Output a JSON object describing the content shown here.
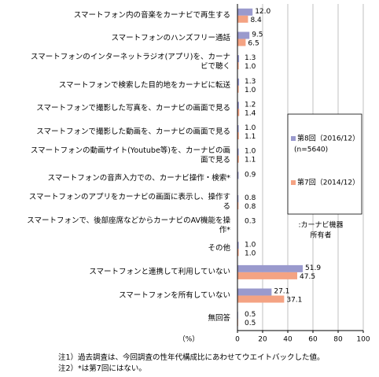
{
  "chart_data": {
    "type": "bar",
    "orientation": "horizontal",
    "categories": [
      "スマートフォン内の音楽をカーナビで再生する",
      "スマートフォンのハンズフリー通話",
      "スマートフォンのインターネットラジオ(アプリ)を、カーナビで聴く",
      "スマートフォンで検索した目的地をカーナビに転送",
      "スマートフォンで撮影した写真を、カーナビの画面で見る",
      "スマートフォンで撮影した動画を、カーナビの画面で見る",
      "スマートフォンの動画サイト(Youtube等)を、カーナビの画面で見る",
      "スマートフォンの音声入力での、カーナビ操作・検索*",
      "スマートフォンのアプリをカーナビの画面に表示し、操作する",
      "スマートフォンで、後部座席などからカーナビのAV機能を操作*",
      "その他",
      "スマートフォンと連携して利用していない",
      "スマートフォンを所有していない",
      "無回答"
    ],
    "series": [
      {
        "name": "第8回（2016/12）",
        "name_note": "(n=5640)",
        "color": "#9a9acd",
        "values": [
          12.0,
          9.5,
          1.3,
          1.3,
          1.2,
          1.0,
          1.0,
          0.9,
          0.8,
          0.3,
          1.0,
          51.9,
          27.1,
          0.5
        ],
        "value_labels": [
          "12.0",
          "9.5",
          "1.3",
          "1.3",
          "1.2",
          "1.0",
          "1.0",
          "0.9",
          "0.8",
          "0.3",
          "1.0",
          "51.9",
          "27.1",
          "0.5"
        ]
      },
      {
        "name": "第7回（2014/12）",
        "color": "#f4a383",
        "values": [
          8.4,
          6.5,
          1.0,
          1.0,
          1.4,
          1.1,
          1.1,
          null,
          0.8,
          null,
          1.0,
          47.5,
          37.1,
          0.5
        ],
        "value_labels": [
          "8.4",
          "6.5",
          "1.0",
          "1.0",
          "1.4",
          "1.1",
          "1.1",
          null,
          "0.8",
          null,
          "1.0",
          "47.5",
          "37.1",
          "0.5"
        ]
      }
    ],
    "xlim": [
      0,
      100
    ],
    "xticks": [
      0,
      20,
      40,
      60,
      80,
      100
    ],
    "x_label": "（%）",
    "grid": true,
    "legend_caption": [
      ":カーナビ機器",
      "所有者"
    ],
    "notes": [
      "注1）過去調査は、今回調査の性年代構成比にあわせてウエイトバックした値。",
      "注2）*は第7回にはない。"
    ]
  }
}
